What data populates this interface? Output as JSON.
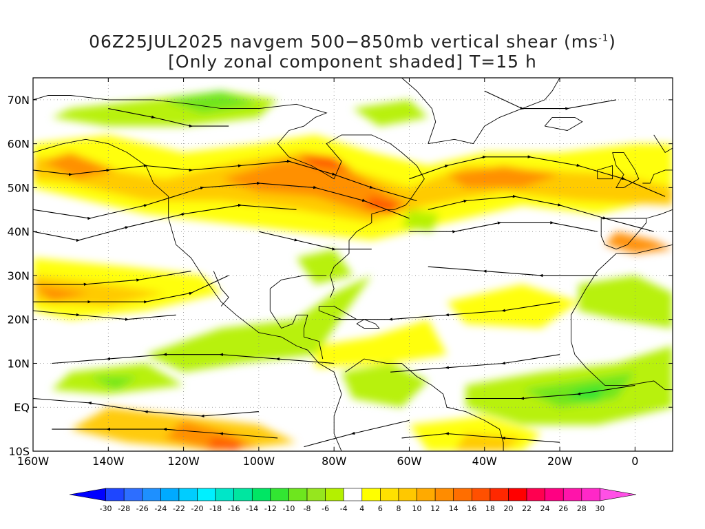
{
  "title": {
    "line1_prefix": "06Z25JUL2025 navgem 500−850mb vertical shear (ms",
    "line1_sup": "-1",
    "line1_suffix": ")",
    "line2": "[Only zonal component shaded] T=15 h"
  },
  "map": {
    "projection": "cylindrical equidistant",
    "lon_range": [
      -160,
      10
    ],
    "lat_range": [
      -10,
      75
    ],
    "field": "500-850mb vertical shear, zonal component shaded, streamlines overlaid",
    "lat_labels": [
      "70N",
      "60N",
      "50N",
      "40N",
      "30N",
      "20N",
      "10N",
      "EQ",
      "10S"
    ],
    "lat_values": [
      70,
      60,
      50,
      40,
      30,
      20,
      10,
      0,
      -10
    ],
    "lon_labels": [
      "160W",
      "140W",
      "120W",
      "100W",
      "80W",
      "60W",
      "40W",
      "20W",
      "0"
    ],
    "lon_values": [
      -160,
      -140,
      -120,
      -100,
      -80,
      -60,
      -40,
      -20,
      0
    ]
  },
  "colorbar": {
    "labels": [
      "-30",
      "-28",
      "-26",
      "-24",
      "-22",
      "-20",
      "-18",
      "-16",
      "-14",
      "-12",
      "-10",
      "-8",
      "-6",
      "-4",
      "4",
      "6",
      "8",
      "10",
      "12",
      "14",
      "16",
      "18",
      "20",
      "22",
      "24",
      "26",
      "28",
      "30"
    ],
    "colors": [
      "#0000ff",
      "#1e46ff",
      "#2d6eff",
      "#1e90ff",
      "#00aaff",
      "#00cdff",
      "#00f0ff",
      "#00e6c8",
      "#00e6a0",
      "#00e664",
      "#32e632",
      "#6ee61e",
      "#96e61e",
      "#b4f000",
      "#ffffff",
      "#ffff00",
      "#ffe100",
      "#ffc800",
      "#ffaa00",
      "#ff8c00",
      "#ff6e00",
      "#ff5000",
      "#ff2800",
      "#ff0000",
      "#ff0050",
      "#ff0082",
      "#ff14aa",
      "#ff28c8",
      "#ff50e6"
    ],
    "shading_colors": {
      "weak_positive": "#ffff00",
      "moderate_positive": "#ffc800",
      "strong_positive": "#ff8c00",
      "very_strong_positive": "#ff5000",
      "weak_negative": "#b4f000",
      "moderate_negative": "#6ee61e",
      "strong_negative": "#32e632"
    }
  }
}
